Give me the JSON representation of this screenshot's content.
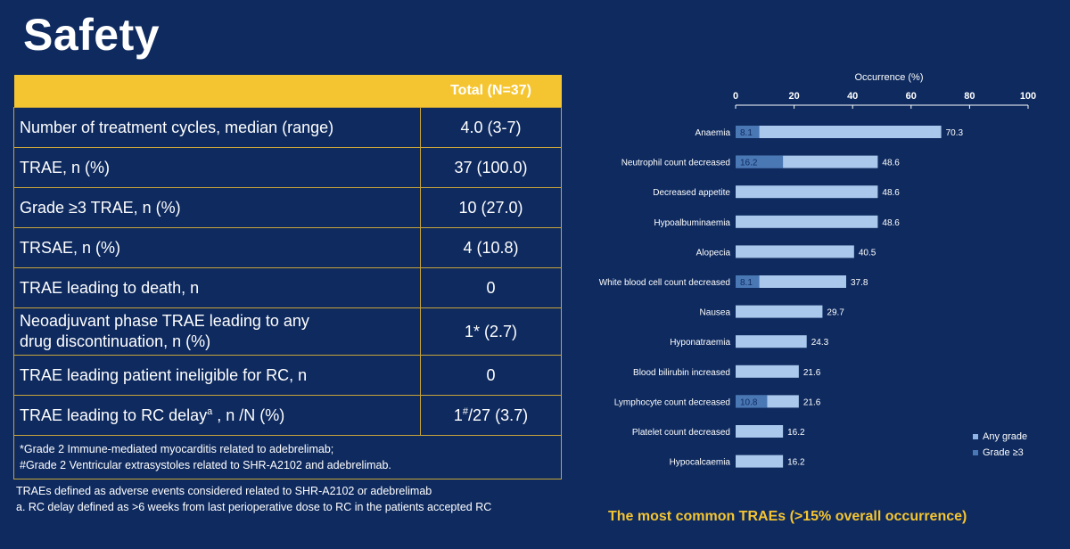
{
  "title": "Safety",
  "table": {
    "header": "Total (N=37)",
    "rows": [
      {
        "label": "Number of treatment cycles, median (range)",
        "value": "4.0 (3-7)"
      },
      {
        "label": "TRAE, n (%)",
        "value": "37 (100.0)"
      },
      {
        "label": "Grade ≥3 TRAE, n (%)",
        "value": "10 (27.0)"
      },
      {
        "label": "TRSAE, n (%)",
        "value": "4 (10.8)"
      },
      {
        "label": "TRAE leading to death, n",
        "value": "0"
      },
      {
        "label_line1": "Neoadjuvant phase TRAE leading to any",
        "label_line2": "drug discontinuation, n (%)",
        "value": "1* (2.7)"
      },
      {
        "label": "TRAE leading patient ineligible for RC, n",
        "value": "0"
      },
      {
        "label_pre": "TRAE leading to RC delay",
        "label_sup": "a",
        "label_post": " , n /N (%)",
        "value_pre": "1",
        "value_sup": "#",
        "value_post": "/27 (3.7)"
      }
    ],
    "footnotes": [
      "*Grade 2 Immune-mediated myocarditis related to adebrelimab;",
      "#Grade 2 Ventricular extrasystoles related to SHR-A2102 and adebrelimab."
    ]
  },
  "notes": [
    "TRAEs defined as adverse events considered related to SHR-A2102 or adebrelimab",
    "a. RC delay defined as >6 weeks from last perioperative dose to RC in the patients accepted RC"
  ],
  "caption": "The most common TRAEs (>15% overall occurrence)",
  "colors": {
    "background": "#0e2a5f",
    "accent": "#f5c531",
    "any_grade": "#a9c8ec",
    "grade3": "#4a78b5"
  },
  "chart_data": {
    "type": "bar",
    "orientation": "horizontal",
    "xlabel": "Occurrence (%)",
    "xlim": [
      0,
      100
    ],
    "xticks": [
      0,
      20,
      40,
      60,
      80,
      100
    ],
    "categories": [
      "Anaemia",
      "Neutrophil count decreased",
      "Decreased appetite",
      "Hypoalbuminaemia",
      "Alopecia",
      "White blood cell count decreased",
      "Nausea",
      "Hyponatraemia",
      "Blood bilirubin increased",
      "Lymphocyte count decreased",
      "Platelet count decreased",
      "Hypocalcaemia"
    ],
    "series": [
      {
        "name": "Any grade",
        "values": [
          70.3,
          48.6,
          48.6,
          48.6,
          40.5,
          37.8,
          29.7,
          24.3,
          21.6,
          21.6,
          16.2,
          16.2
        ]
      },
      {
        "name": "Grade ≥3",
        "values": [
          8.1,
          16.2,
          null,
          null,
          null,
          8.1,
          null,
          null,
          null,
          10.8,
          null,
          null
        ]
      }
    ],
    "legend_position": "bottom-right"
  }
}
